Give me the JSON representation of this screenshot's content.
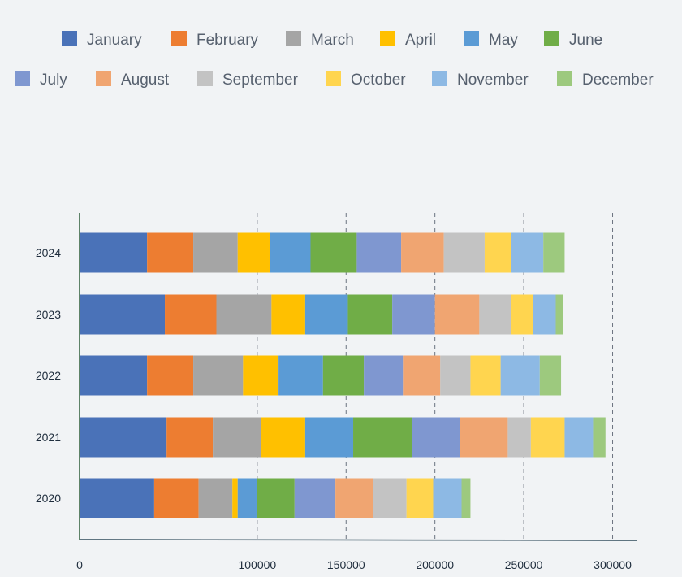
{
  "chart_data": {
    "type": "bar",
    "orientation": "horizontal",
    "stacked": true,
    "categories": [
      "2024",
      "2023",
      "2022",
      "2021",
      "2020"
    ],
    "series": [
      {
        "name": "January",
        "color": "#4a72b8",
        "values": [
          38000,
          48000,
          38000,
          49000,
          42000
        ]
      },
      {
        "name": "February",
        "color": "#ed7d31",
        "values": [
          26000,
          29000,
          26000,
          26000,
          25000
        ]
      },
      {
        "name": "March",
        "color": "#a5a5a5",
        "values": [
          25000,
          31000,
          28000,
          27000,
          19000
        ]
      },
      {
        "name": "April",
        "color": "#ffc000",
        "values": [
          18000,
          19000,
          20000,
          25000,
          3000
        ]
      },
      {
        "name": "May",
        "color": "#5b9bd5",
        "values": [
          23000,
          24000,
          25000,
          27000,
          11000
        ]
      },
      {
        "name": "June",
        "color": "#70ad47",
        "values": [
          26000,
          25000,
          23000,
          33000,
          21000
        ]
      },
      {
        "name": "July",
        "color": "#7f97d0",
        "values": [
          25000,
          24000,
          22000,
          27000,
          23000
        ]
      },
      {
        "name": "August",
        "color": "#f0a571",
        "values": [
          24000,
          25000,
          21000,
          27000,
          21000
        ]
      },
      {
        "name": "September",
        "color": "#c3c3c3",
        "values": [
          23000,
          18000,
          17000,
          13000,
          19000
        ]
      },
      {
        "name": "October",
        "color": "#ffd54f",
        "values": [
          15000,
          12000,
          17000,
          19000,
          15000
        ]
      },
      {
        "name": "November",
        "color": "#8db9e4",
        "values": [
          18000,
          13000,
          22000,
          16000,
          16000
        ]
      },
      {
        "name": "December",
        "color": "#9dc97e",
        "values": [
          12000,
          4000,
          12000,
          7000,
          5000
        ]
      }
    ],
    "x_ticks": [
      "0",
      "100000",
      "150000",
      "200000",
      "250000",
      "300000"
    ],
    "xlim": [
      0,
      315000
    ],
    "grid": "vertical dashed",
    "legend_position": "top",
    "title": "",
    "xlabel": "",
    "ylabel": ""
  }
}
